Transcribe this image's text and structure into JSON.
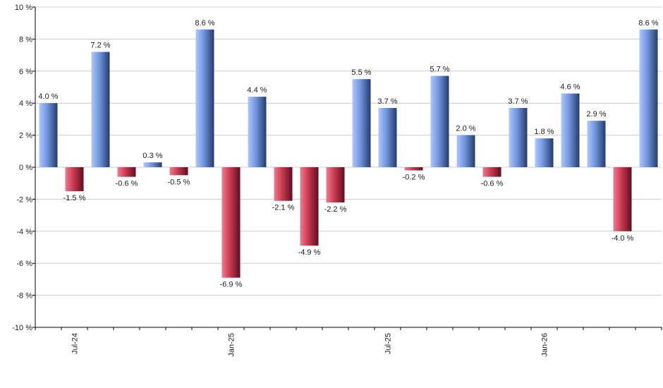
{
  "chart_data": {
    "type": "bar",
    "unit_suffix": " %",
    "x": [
      "2024-06",
      "2024-07",
      "2024-08",
      "2024-09",
      "2024-10",
      "2024-11",
      "2024-12",
      "2025-01",
      "2025-02",
      "2025-03",
      "2025-04",
      "2025-05",
      "2025-06",
      "2025-07",
      "2025-08",
      "2025-09",
      "2025-10",
      "2025-11",
      "2025-12",
      "2026-01",
      "2026-02",
      "2026-03",
      "2026-04",
      "2026-05"
    ],
    "values": [
      4.0,
      -1.5,
      7.2,
      -0.6,
      0.3,
      -0.5,
      8.6,
      -6.9,
      4.4,
      -2.1,
      -4.9,
      -2.2,
      5.5,
      3.7,
      -0.2,
      5.7,
      2.0,
      -0.6,
      3.7,
      1.8,
      4.6,
      2.9,
      -4.0,
      8.6
    ],
    "data_labels": [
      "4.0 %",
      "-1.5 %",
      "7.2 %",
      "-0.6 %",
      "0.3 %",
      "-0.5 %",
      "8.6 %",
      "-6.9 %",
      "4.4 %",
      "-2.1 %",
      "-4.9 %",
      "-2.2 %",
      "5.5 %",
      "3.7 %",
      "-0.2 %",
      "5.7 %",
      "2.0 %",
      "-0.6 %",
      "3.7 %",
      "1.8 %",
      "4.6 %",
      "2.9 %",
      "-4.0 %",
      "8.6 %"
    ],
    "value_label_suffix": " %",
    "ylim": [
      -10,
      10
    ],
    "y_ticks": [
      "10 %",
      "8 %",
      "6 %",
      "4 %",
      "2 %",
      "0 %",
      "-2 %",
      "-4 %",
      "-6 %",
      "-8 %",
      "-10 %"
    ],
    "x_tick_labels": [
      {
        "label": "Jul-24",
        "index": 1
      },
      {
        "label": "Jan-25",
        "index": 7
      },
      {
        "label": "Jul-25",
        "index": 13
      },
      {
        "label": "Jan-26",
        "index": 19
      }
    ],
    "title": "",
    "xlabel": "",
    "ylabel": "",
    "grid": true,
    "colors": {
      "positive": [
        "#adc8ff",
        "#6f93da",
        "#243b6b"
      ],
      "negative": [
        "#f07a90",
        "#c9384f",
        "#5c1020"
      ],
      "grid": "#cccccc",
      "axis": "#000000"
    }
  }
}
